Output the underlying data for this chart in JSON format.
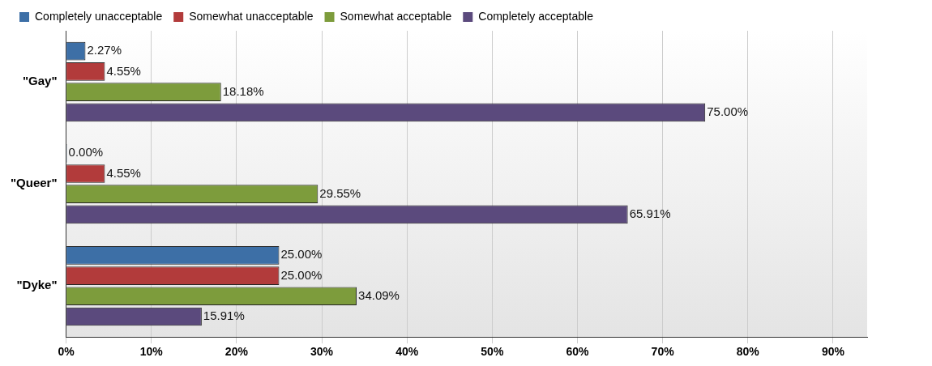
{
  "chart_data": {
    "type": "bar",
    "orientation": "horizontal",
    "categories": [
      "\"Gay\"",
      "\"Queer\"",
      "\"Dyke\""
    ],
    "series": [
      {
        "name": "Completely unacceptable",
        "color": "#3d6fa6",
        "values": [
          2.27,
          0,
          25
        ],
        "value_labels": [
          "2.27%",
          "0.00%",
          "25.00%"
        ]
      },
      {
        "name": "Somewhat unacceptable",
        "color": "#b23b3b",
        "values": [
          4.55,
          4.55,
          25
        ],
        "value_labels": [
          "4.55%",
          "4.55%",
          "25.00%"
        ]
      },
      {
        "name": "Somewhat acceptable",
        "color": "#7d9c3c",
        "values": [
          18.18,
          29.55,
          34.09
        ],
        "value_labels": [
          "18.18%",
          "29.55%",
          "34.09%"
        ]
      },
      {
        "name": "Completely acceptable",
        "color": "#5b4a7d",
        "values": [
          75,
          65.91,
          15.91
        ],
        "value_labels": [
          "75.00%",
          "65.91%",
          "15.91%"
        ]
      }
    ],
    "xlim": [
      0,
      94
    ],
    "xticks": [
      {
        "value": 0,
        "label": "0%"
      },
      {
        "value": 10,
        "label": "10%"
      },
      {
        "value": 20,
        "label": "20%"
      },
      {
        "value": 30,
        "label": "30%"
      },
      {
        "value": 40,
        "label": "40%"
      },
      {
        "value": 50,
        "label": "50%"
      },
      {
        "value": 60,
        "label": "60%"
      },
      {
        "value": 70,
        "label": "70%"
      },
      {
        "value": 80,
        "label": "80%"
      },
      {
        "value": 90,
        "label": "90%"
      }
    ],
    "grid": "x",
    "legend": "top"
  }
}
